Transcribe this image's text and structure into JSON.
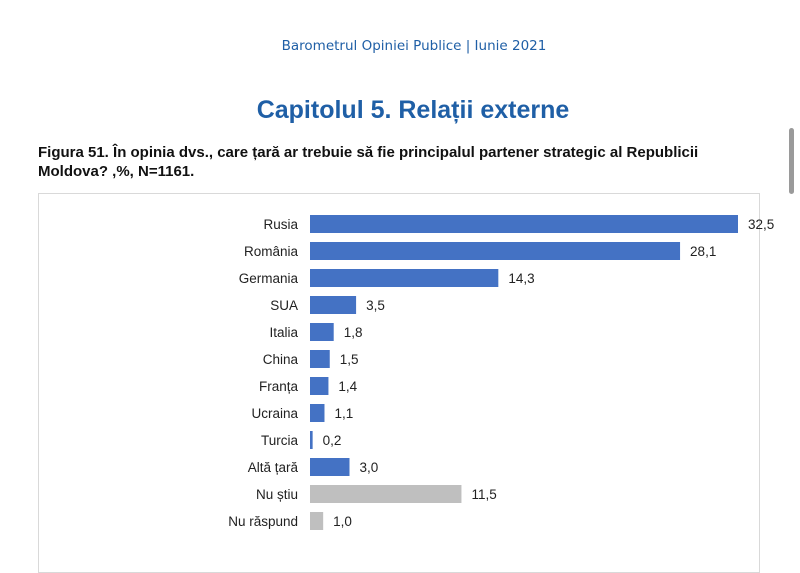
{
  "header": {
    "report_title": "Barometrul Opiniei Publice | Iunie 2021",
    "chapter_title": "Capitolul 5. Relații externe"
  },
  "figure": {
    "caption_line1": "Figura 51. În opinia dvs., care țară ar trebuie să fie principalul partener strategic al Republicii",
    "caption_line2": "Moldova? ,%, N=1161."
  },
  "colors": {
    "primary_bar": "#4472c4",
    "secondary_bar": "#bfbfbf",
    "heading": "#1f5fa6"
  },
  "chart_data": {
    "type": "bar",
    "orientation": "horizontal",
    "title": "",
    "xlabel": "",
    "ylabel": "",
    "xlim": [
      0,
      32.5
    ],
    "grid": false,
    "legend": "none",
    "categories": [
      "Rusia",
      "România",
      "Germania",
      "SUA",
      "Italia",
      "China",
      "Franța",
      "Ucraina",
      "Turcia",
      "Altă țară",
      "Nu știu",
      "Nu răspund"
    ],
    "values": [
      32.5,
      28.1,
      14.3,
      3.5,
      1.8,
      1.5,
      1.4,
      1.1,
      0.2,
      3.0,
      11.5,
      1.0
    ],
    "value_labels": [
      "32,5",
      "28,1",
      "14,3",
      "3,5",
      "1,8",
      "1,5",
      "1,4",
      "1,1",
      "0,2",
      "3,0",
      "11,5",
      "1,0"
    ],
    "bar_colors": [
      "#4472c4",
      "#4472c4",
      "#4472c4",
      "#4472c4",
      "#4472c4",
      "#4472c4",
      "#4472c4",
      "#4472c4",
      "#4472c4",
      "#4472c4",
      "#bfbfbf",
      "#bfbfbf"
    ]
  }
}
